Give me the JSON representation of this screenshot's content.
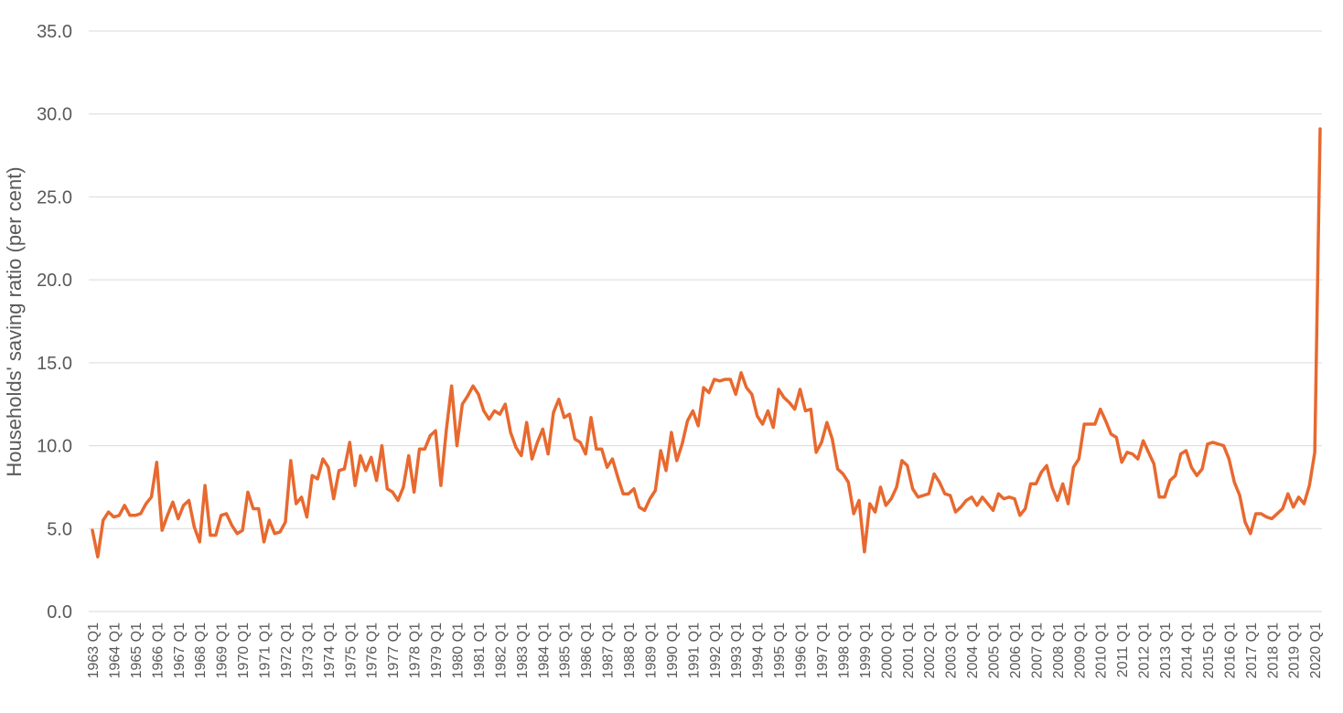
{
  "chart_data": {
    "type": "line",
    "ylabel": "Households' saving ratio (per cent)",
    "xlabel": "",
    "ylim": [
      0,
      35
    ],
    "y_ticks": [
      "0.0",
      "5.0",
      "10.0",
      "15.0",
      "20.0",
      "25.0",
      "30.0",
      "35.0"
    ],
    "grid": "horizontal",
    "legend": "none",
    "x_tick_labels": [
      "1963 Q1",
      "1964 Q1",
      "1965 Q1",
      "1966 Q1",
      "1967 Q1",
      "1968 Q1",
      "1969 Q1",
      "1970 Q1",
      "1971 Q1",
      "1972 Q1",
      "1973 Q1",
      "1974 Q1",
      "1975 Q1",
      "1976 Q1",
      "1977 Q1",
      "1978 Q1",
      "1979 Q1",
      "1980 Q1",
      "1981 Q1",
      "1982 Q1",
      "1983 Q1",
      "1984 Q1",
      "1985 Q1",
      "1986 Q1",
      "1987 Q1",
      "1988 Q1",
      "1989 Q1",
      "1990 Q1",
      "1991 Q1",
      "1992 Q1",
      "1993 Q1",
      "1994 Q1",
      "1995 Q1",
      "1996 Q1",
      "1997 Q1",
      "1998 Q1",
      "1999 Q1",
      "2000 Q1",
      "2001 Q1",
      "2002 Q1",
      "2003 Q1",
      "2004 Q1",
      "2005 Q1",
      "2006 Q1",
      "2007 Q1",
      "2008 Q1",
      "2009 Q1",
      "2010 Q1",
      "2011 Q1",
      "2012 Q1",
      "2013 Q1",
      "2014 Q1",
      "2015 Q1",
      "2016 Q1",
      "2017 Q1",
      "2018 Q1",
      "2019 Q1",
      "2020 Q1"
    ],
    "first_period": "1963 Q1",
    "last_period": "2020 Q2",
    "series": [
      {
        "color": "#E8692F",
        "values": [
          4.9,
          3.3,
          5.5,
          6.0,
          5.7,
          5.8,
          6.4,
          5.8,
          5.8,
          5.9,
          6.5,
          6.9,
          9.0,
          4.9,
          5.8,
          6.6,
          5.6,
          6.4,
          6.7,
          5.1,
          4.2,
          7.6,
          4.6,
          4.6,
          5.8,
          5.9,
          5.2,
          4.7,
          4.9,
          7.2,
          6.2,
          6.2,
          4.2,
          5.5,
          4.7,
          4.8,
          5.4,
          9.1,
          6.5,
          6.9,
          5.7,
          8.2,
          8.0,
          9.2,
          8.7,
          6.8,
          8.5,
          8.6,
          10.2,
          7.6,
          9.4,
          8.5,
          9.3,
          7.9,
          10.0,
          7.4,
          7.2,
          6.7,
          7.5,
          9.4,
          7.2,
          9.8,
          9.8,
          10.6,
          10.9,
          7.6,
          10.9,
          13.6,
          10.0,
          12.5,
          13.0,
          13.6,
          13.1,
          12.1,
          11.6,
          12.1,
          11.9,
          12.5,
          10.8,
          9.9,
          9.4,
          11.4,
          9.2,
          10.2,
          11.0,
          9.5,
          12.0,
          12.8,
          11.7,
          11.9,
          10.4,
          10.2,
          9.5,
          11.7,
          9.8,
          9.8,
          8.7,
          9.2,
          8.1,
          7.1,
          7.1,
          7.4,
          6.3,
          6.1,
          6.8,
          7.3,
          9.7,
          8.5,
          10.8,
          9.1,
          10.1,
          11.5,
          12.1,
          11.2,
          13.5,
          13.2,
          14.0,
          13.9,
          14.0,
          14.0,
          13.1,
          14.4,
          13.5,
          13.1,
          11.8,
          11.3,
          12.1,
          11.1,
          13.4,
          12.9,
          12.6,
          12.2,
          13.4,
          12.1,
          12.2,
          9.6,
          10.2,
          11.4,
          10.4,
          8.6,
          8.3,
          7.8,
          5.9,
          6.7,
          3.6,
          6.5,
          6.0,
          7.5,
          6.4,
          6.8,
          7.5,
          9.1,
          8.8,
          7.4,
          6.9,
          7.0,
          7.1,
          8.3,
          7.8,
          7.1,
          7.0,
          6.0,
          6.3,
          6.7,
          6.9,
          6.4,
          6.9,
          6.5,
          6.1,
          7.1,
          6.8,
          6.9,
          6.8,
          5.8,
          6.2,
          7.7,
          7.7,
          8.4,
          8.8,
          7.5,
          6.7,
          7.7,
          6.5,
          8.7,
          9.2,
          11.3,
          11.3,
          11.3,
          12.2,
          11.5,
          10.7,
          10.5,
          9.0,
          9.6,
          9.5,
          9.2,
          10.3,
          9.6,
          8.9,
          6.9,
          6.9,
          7.9,
          8.2,
          9.5,
          9.7,
          8.7,
          8.2,
          8.6,
          10.1,
          10.2,
          10.1,
          10.0,
          9.2,
          7.8,
          7.0,
          5.4,
          4.7,
          5.9,
          5.9,
          5.7,
          5.6,
          5.9,
          6.2,
          7.1,
          6.3,
          6.9,
          6.5,
          7.6,
          9.6,
          29.1
        ]
      }
    ]
  }
}
